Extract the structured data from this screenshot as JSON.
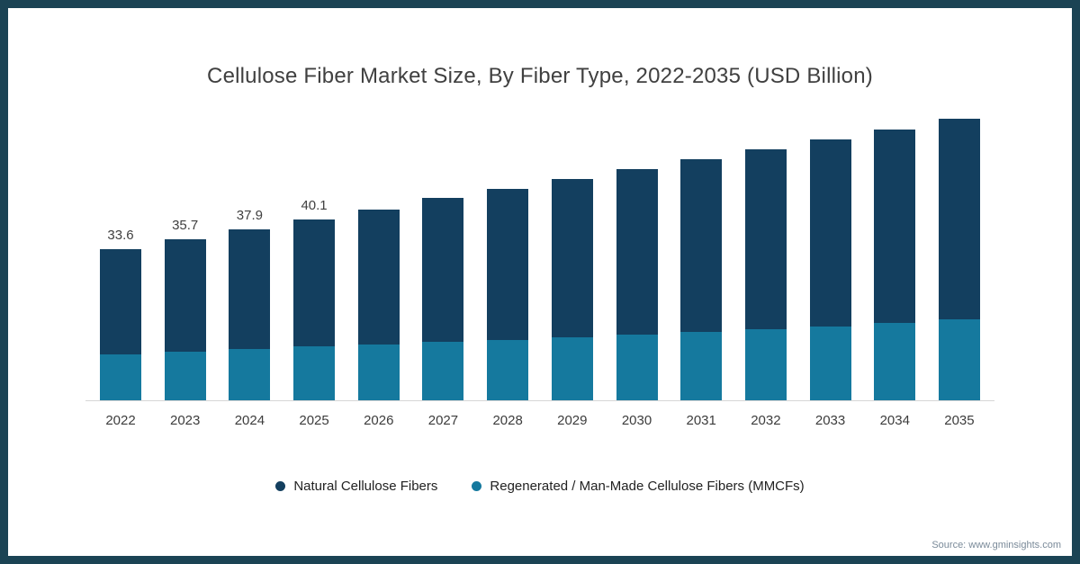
{
  "title": "Cellulose Fiber Market Size, By Fiber Type, 2022-2035 (USD Billion)",
  "source": "Source: www.gminsights.com",
  "colors": {
    "frame_border": "#1b4354",
    "natural_fibers": "#133f5f",
    "mmcf_fibers": "#15799e",
    "axis_line": "#d6d6d6"
  },
  "legend": [
    {
      "label": "Natural Cellulose Fibers",
      "color": "#133f5f"
    },
    {
      "label": "Regenerated / Man-Made Cellulose Fibers (MMCFs)",
      "color": "#15799e"
    }
  ],
  "chart_data": {
    "type": "bar",
    "stacked": true,
    "title": "Cellulose Fiber Market Size, By Fiber Type, 2022-2035 (USD Billion)",
    "xlabel": "",
    "ylabel": "USD Billion",
    "grid": false,
    "legend_position": "bottom",
    "categories": [
      "2022",
      "2023",
      "2024",
      "2025",
      "2026",
      "2027",
      "2028",
      "2029",
      "2030",
      "2031",
      "2032",
      "2033",
      "2034",
      "2035"
    ],
    "series": [
      {
        "name": "Regenerated / Man-Made Cellulose Fibers (MMCFs)",
        "color": "#15799e",
        "values": [
          10.2,
          10.8,
          11.3,
          11.9,
          12.4,
          12.9,
          13.4,
          14.0,
          14.6,
          15.2,
          15.8,
          16.4,
          17.2,
          18.0
        ]
      },
      {
        "name": "Natural Cellulose Fibers",
        "color": "#133f5f",
        "values": [
          23.4,
          24.9,
          26.6,
          28.2,
          30.0,
          32.0,
          33.5,
          35.1,
          36.8,
          38.3,
          39.9,
          41.6,
          42.9,
          44.5
        ]
      }
    ],
    "totals": [
      33.6,
      35.7,
      37.9,
      40.1,
      42.4,
      44.9,
      46.9,
      49.1,
      51.4,
      53.5,
      55.7,
      58.0,
      60.1,
      62.5
    ],
    "data_labels": [
      "33.6",
      "35.7",
      "37.9",
      "40.1",
      null,
      null,
      null,
      null,
      null,
      null,
      null,
      null,
      null,
      null
    ],
    "ylim": [
      0,
      65
    ]
  }
}
